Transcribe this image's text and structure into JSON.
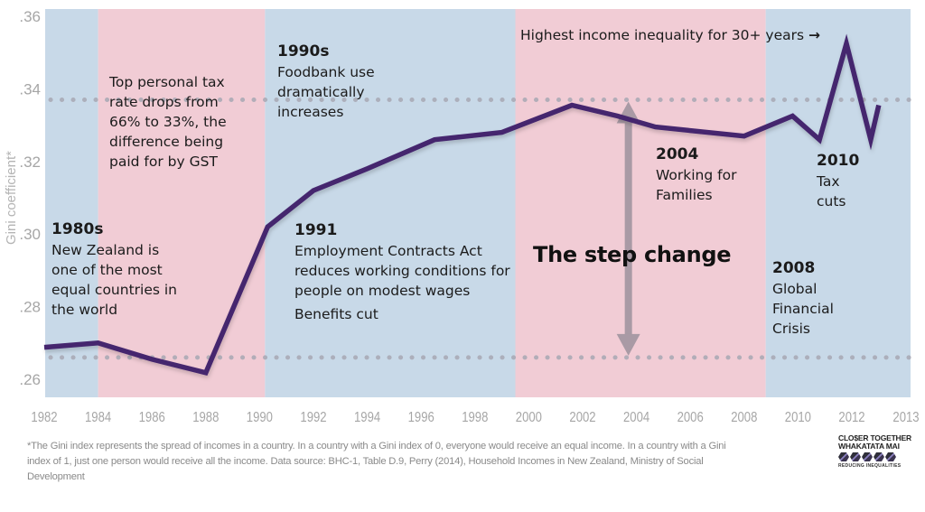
{
  "chart_data": {
    "type": "line",
    "title": "",
    "xlabel": "",
    "ylabel": "Gini coefficient*",
    "xlim": [
      1982,
      2013
    ],
    "ylim": [
      0.26,
      0.36
    ],
    "x_ticks": [
      "1982",
      "1984",
      "1986",
      "1988",
      "1990",
      "1992",
      "1994",
      "1996",
      "1998",
      "2000",
      "2002",
      "2004",
      "2006",
      "2008",
      "2010",
      "2012",
      "2013"
    ],
    "y_ticks": [
      ".26",
      ".28",
      ".30",
      ".32",
      ".34",
      ".36"
    ],
    "grid": false,
    "legend": "none",
    "series": [
      {
        "name": "Gini coefficient",
        "color": "#44256e",
        "points": [
          [
            1982,
            0.2688
          ],
          [
            1984,
            0.27
          ],
          [
            1986,
            0.2655
          ],
          [
            1988,
            0.2618
          ],
          [
            1990.3,
            0.302
          ],
          [
            1992,
            0.312
          ],
          [
            1994,
            0.318
          ],
          [
            1996.5,
            0.326
          ],
          [
            1999,
            0.328
          ],
          [
            2001.6,
            0.3355
          ],
          [
            2003.3,
            0.3325
          ],
          [
            2004.7,
            0.3295
          ],
          [
            2008,
            0.327
          ],
          [
            2009.8,
            0.3325
          ],
          [
            2010.8,
            0.326
          ],
          [
            2011.8,
            0.3525
          ],
          [
            2012.7,
            0.326
          ],
          [
            2013,
            0.3355
          ]
        ]
      }
    ],
    "reference_lines": [
      {
        "name": "1980s level",
        "value": 0.266,
        "style": "dotted",
        "color": "#a8a8b4"
      },
      {
        "name": "recent level",
        "value": 0.337,
        "style": "dotted",
        "color": "#a8a8b4"
      }
    ],
    "bands": [
      {
        "from": 1982,
        "to": 1984,
        "color": "#c8d9e8"
      },
      {
        "from": 1984,
        "to": 1990.2,
        "color": "#f1ccd5"
      },
      {
        "from": 1990.2,
        "to": 1999.5,
        "color": "#c8d9e8"
      },
      {
        "from": 1999.5,
        "to": 2008.8,
        "color": "#f1ccd5"
      },
      {
        "from": 2008.8,
        "to": 2013.2,
        "color": "#c8d9e8"
      }
    ],
    "step_arrow": {
      "x": 2003.7,
      "from": 0.266,
      "to": 0.337,
      "color": "#a99aa5"
    },
    "annotations": [
      {
        "id": "a1980s",
        "year": "1980s",
        "text": "New Zealand is one of the most equal countries in the world"
      },
      {
        "id": "atax",
        "year": "",
        "text": "Top personal tax rate drops from 66% to 33%, the difference being paid for by GST"
      },
      {
        "id": "a1990s",
        "year": "1990s",
        "text": "Foodbank use dramatically increases"
      },
      {
        "id": "a1991",
        "year": "1991",
        "text": "Employment Contracts Act reduces working conditions for people on modest wages",
        "extra": "Benefits cut"
      },
      {
        "id": "a2004",
        "year": "2004",
        "text": "Working for Families"
      },
      {
        "id": "a2008",
        "year": "2008",
        "text": "Global Financial Crisis"
      },
      {
        "id": "a2010",
        "year": "2010",
        "text": "Tax cuts"
      }
    ],
    "callouts": {
      "highest": "Highest income inequality for 30+ years",
      "highest_arrow": "→",
      "step_change": "The step change"
    }
  },
  "footnote": "*The Gini index represents the spread of incomes in a country. In a country with a Gini index of 0, everyone would receive an equal income. In a country with a Gini index of 1, just one person would receive all the income. Data source: BHC-1, Table D.9, Perry (2014), Household Incomes in New Zealand, Ministry of Social Development",
  "logo": {
    "line1": "CLO$ER TOGETHER",
    "line2": "WHAKATATA MAI",
    "line3": "REDUCING INEQUALITIES"
  },
  "colors": {
    "blue_band": "#c8d9e8",
    "pink_band": "#f1ccd5",
    "line": "#44256e",
    "axis_text": "#a6a6a6"
  }
}
